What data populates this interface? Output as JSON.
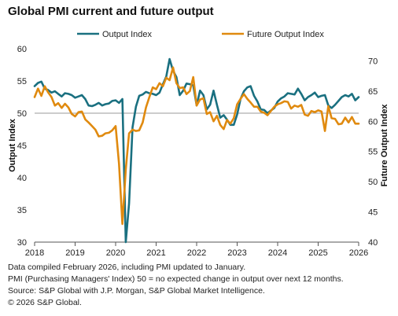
{
  "title": "Global PMI current and future output",
  "footnotes": [
    "Data compiled February 2026, including PMI updated to January.",
    "PMI (Purchasing Managers' Index) 50 = no expected change in output over next 12 months.",
    "Source: S&P Global with J.P. Morgan, S&P Global Market Intelligence.",
    "© 2026 S&P Global."
  ],
  "colors": {
    "output": "#1a7080",
    "future": "#e08a0f",
    "axis": "#555555",
    "reference": "#999999"
  },
  "chart_data": {
    "type": "line",
    "title": "Global PMI current and future output",
    "xlabel": "",
    "ylabel": "Output Index",
    "y2label": "Future Output Index",
    "xlim": [
      2018.0,
      2026.0
    ],
    "ylim": [
      30,
      60
    ],
    "y2lim": [
      40,
      72
    ],
    "x_ticks": [
      2018,
      2019,
      2020,
      2021,
      2022,
      2023,
      2024,
      2025,
      2026
    ],
    "y_ticks": [
      30,
      35,
      40,
      45,
      50,
      55,
      60
    ],
    "y2_ticks": [
      40,
      45,
      50,
      55,
      60,
      65,
      70
    ],
    "reference_line": 50,
    "grid": false,
    "legend_position": "top",
    "series": [
      {
        "name": "Output Index",
        "axis": "left",
        "color": "#1a7080",
        "x": [
          2018.0,
          2018.083,
          2018.167,
          2018.25,
          2018.333,
          2018.417,
          2018.5,
          2018.583,
          2018.667,
          2018.75,
          2018.833,
          2018.917,
          2019.0,
          2019.083,
          2019.167,
          2019.25,
          2019.333,
          2019.417,
          2019.5,
          2019.583,
          2019.667,
          2019.75,
          2019.833,
          2019.917,
          2020.0,
          2020.083,
          2020.167,
          2020.25,
          2020.333,
          2020.417,
          2020.5,
          2020.583,
          2020.667,
          2020.75,
          2020.833,
          2020.917,
          2021.0,
          2021.083,
          2021.167,
          2021.25,
          2021.333,
          2021.417,
          2021.5,
          2021.583,
          2021.667,
          2021.75,
          2021.833,
          2021.917,
          2022.0,
          2022.083,
          2022.167,
          2022.25,
          2022.333,
          2022.417,
          2022.5,
          2022.583,
          2022.667,
          2022.75,
          2022.833,
          2022.917,
          2023.0,
          2023.083,
          2023.167,
          2023.25,
          2023.333,
          2023.417,
          2023.5,
          2023.583,
          2023.667,
          2023.75,
          2023.833,
          2023.917,
          2024.0,
          2024.083,
          2024.167,
          2024.25,
          2024.333,
          2024.417,
          2024.5,
          2024.583,
          2024.667,
          2024.75,
          2024.833,
          2024.917,
          2025.0,
          2025.083,
          2025.167,
          2025.25,
          2025.333,
          2025.417,
          2025.5,
          2025.583,
          2025.667,
          2025.75,
          2025.833,
          2025.917,
          2026.0
        ],
        "values": [
          54.2,
          54.7,
          54.9,
          53.8,
          53.6,
          53.2,
          53.4,
          53.0,
          52.6,
          53.1,
          53.0,
          52.8,
          52.4,
          52.6,
          52.8,
          52.2,
          51.2,
          51.1,
          51.3,
          51.6,
          51.2,
          51.4,
          51.5,
          51.9,
          52.0,
          51.6,
          52.2,
          30.0,
          36.0,
          47.8,
          51.0,
          52.7,
          52.9,
          53.3,
          53.1,
          53.0,
          52.8,
          53.2,
          54.5,
          55.7,
          58.4,
          56.6,
          55.6,
          52.8,
          53.5,
          54.6,
          54.5,
          54.3,
          51.2,
          53.5,
          52.8,
          50.6,
          51.3,
          53.5,
          51.3,
          49.3,
          49.7,
          49.0,
          48.2,
          48.2,
          49.8,
          52.2,
          53.4,
          54.0,
          54.2,
          52.7,
          51.8,
          50.6,
          50.5,
          50.0,
          50.4,
          50.8,
          51.8,
          52.3,
          52.6,
          53.1,
          53.0,
          52.9,
          53.8,
          53.0,
          52.0,
          52.5,
          52.8,
          53.2,
          52.5,
          52.7,
          52.8,
          51.2,
          50.8,
          51.3,
          51.9,
          52.5,
          52.8,
          52.6,
          53.0,
          52.0,
          52.5
        ]
      },
      {
        "name": "Future Output Index",
        "axis": "right",
        "color": "#e08a0f",
        "x": [
          2018.0,
          2018.083,
          2018.167,
          2018.25,
          2018.333,
          2018.417,
          2018.5,
          2018.583,
          2018.667,
          2018.75,
          2018.833,
          2018.917,
          2019.0,
          2019.083,
          2019.167,
          2019.25,
          2019.333,
          2019.417,
          2019.5,
          2019.583,
          2019.667,
          2019.75,
          2019.833,
          2019.917,
          2020.0,
          2020.083,
          2020.167,
          2020.25,
          2020.333,
          2020.417,
          2020.5,
          2020.583,
          2020.667,
          2020.75,
          2020.833,
          2020.917,
          2021.0,
          2021.083,
          2021.167,
          2021.25,
          2021.333,
          2021.417,
          2021.5,
          2021.583,
          2021.667,
          2021.75,
          2021.833,
          2021.917,
          2022.0,
          2022.083,
          2022.167,
          2022.25,
          2022.333,
          2022.417,
          2022.5,
          2022.583,
          2022.667,
          2022.75,
          2022.833,
          2022.917,
          2023.0,
          2023.083,
          2023.167,
          2023.25,
          2023.333,
          2023.417,
          2023.5,
          2023.583,
          2023.667,
          2023.75,
          2023.833,
          2023.917,
          2024.0,
          2024.083,
          2024.167,
          2024.25,
          2024.333,
          2024.417,
          2024.5,
          2024.583,
          2024.667,
          2024.75,
          2024.833,
          2024.917,
          2025.0,
          2025.083,
          2025.167,
          2025.25,
          2025.333,
          2025.417,
          2025.5,
          2025.583,
          2025.667,
          2025.75,
          2025.833,
          2025.917,
          2026.0
        ],
        "values": [
          64.0,
          65.4,
          64.2,
          65.8,
          64.8,
          64.0,
          62.6,
          63.0,
          62.2,
          62.9,
          62.3,
          61.2,
          60.8,
          61.5,
          61.6,
          60.3,
          59.8,
          59.2,
          58.6,
          57.5,
          57.6,
          58.0,
          58.1,
          58.5,
          59.2,
          53.0,
          43.0,
          52.0,
          58.0,
          58.6,
          58.4,
          58.5,
          59.8,
          62.3,
          64.0,
          65.6,
          65.3,
          66.3,
          65.8,
          67.2,
          66.8,
          68.9,
          66.3,
          65.5,
          65.6,
          64.5,
          65.0,
          67.3,
          62.6,
          63.6,
          63.8,
          61.2,
          61.5,
          60.0,
          60.9,
          59.4,
          58.7,
          60.2,
          59.6,
          60.5,
          62.8,
          63.7,
          64.5,
          63.7,
          63.1,
          62.4,
          62.4,
          61.6,
          61.4,
          61.0,
          61.7,
          62.4,
          62.8,
          63.0,
          63.3,
          63.2,
          62.1,
          62.6,
          62.4,
          62.7,
          61.1,
          60.9,
          61.7,
          61.5,
          61.8,
          61.6,
          58.4,
          62.5,
          60.5,
          60.4,
          59.5,
          59.6,
          60.6,
          59.8,
          60.7,
          59.6,
          59.6
        ]
      }
    ]
  }
}
